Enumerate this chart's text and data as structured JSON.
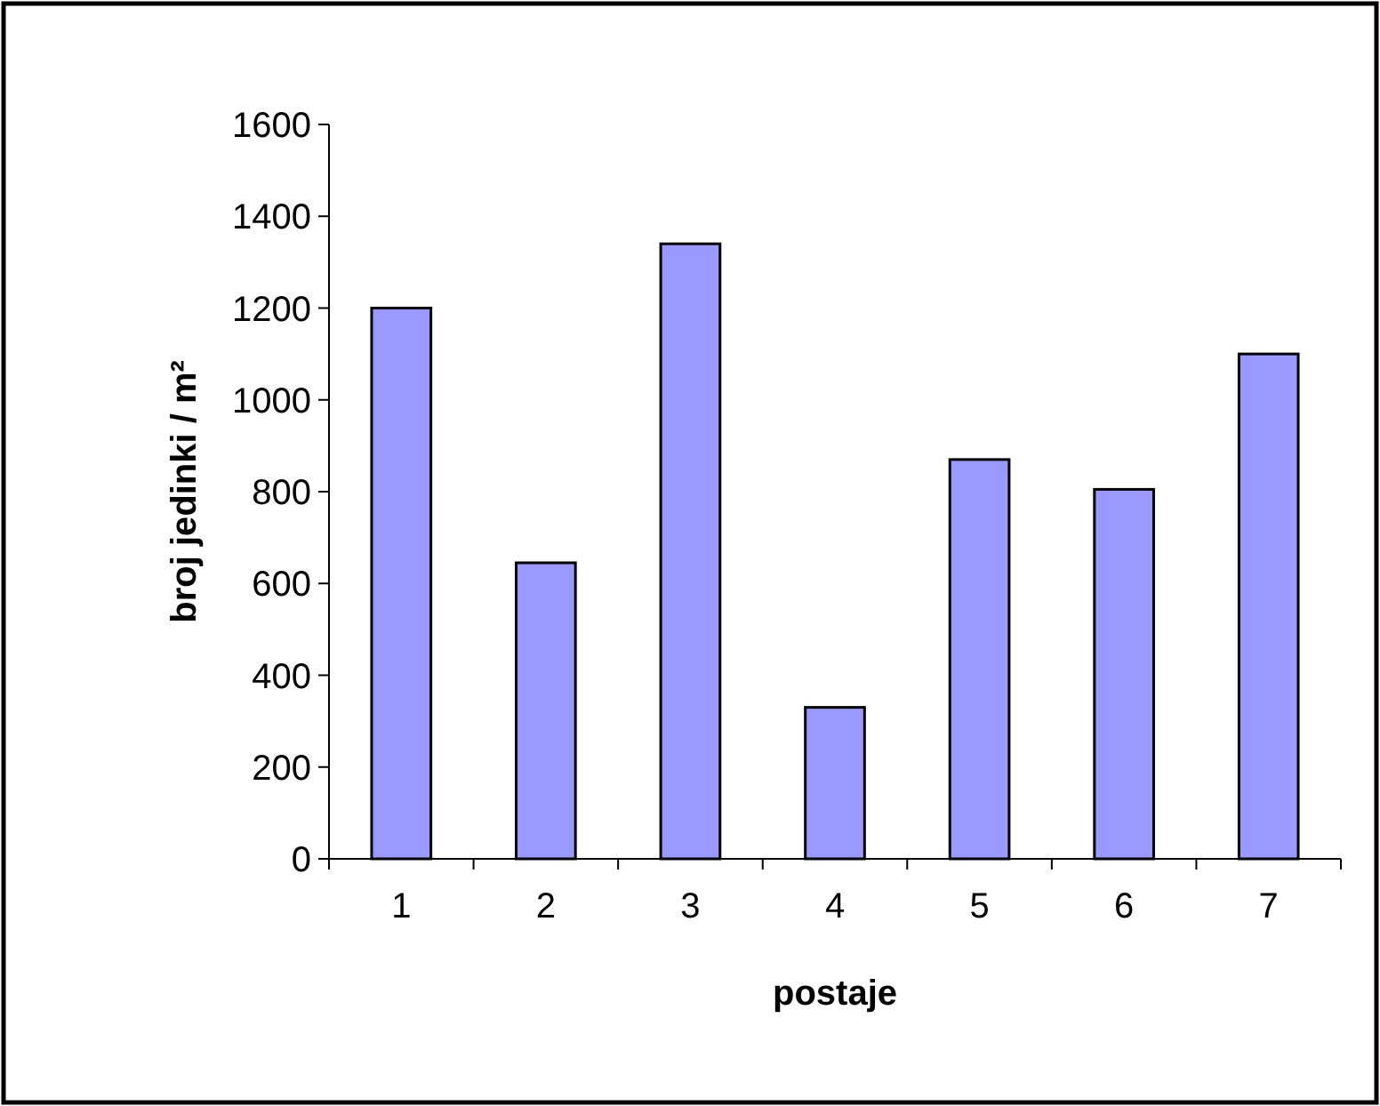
{
  "chart_data": {
    "type": "bar",
    "xlabel": "postaje",
    "ylabel": "broj jedinki / m²",
    "categories": [
      "1",
      "2",
      "3",
      "4",
      "5",
      "6",
      "7"
    ],
    "values": [
      1200,
      645,
      1340,
      330,
      870,
      805,
      1100
    ],
    "color": "#9999ff",
    "ylim": [
      0,
      1600
    ],
    "yticks": [
      0,
      200,
      400,
      600,
      800,
      1000,
      1200,
      1400,
      1600
    ],
    "grid": false
  }
}
